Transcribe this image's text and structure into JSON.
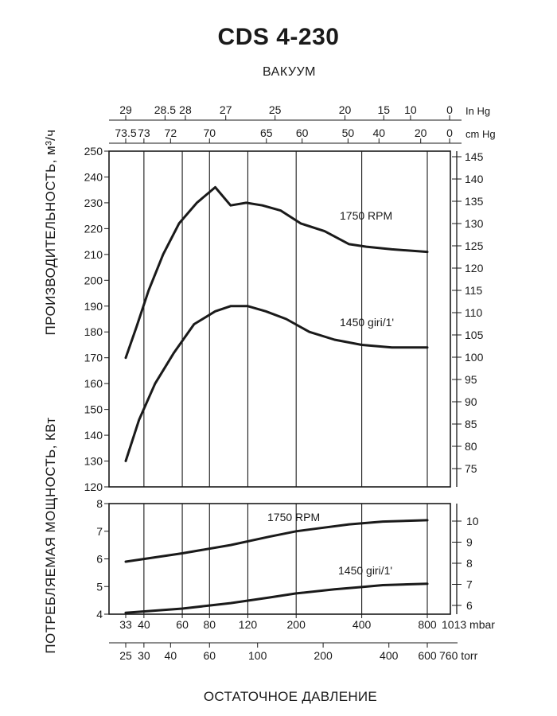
{
  "header": {
    "title": "CDS 4-230",
    "vacuum_label": "ВАКУУМ"
  },
  "footer": {
    "pressure_label": "ОСТАТОЧНОЕ ДАВЛЕНИЕ"
  },
  "axes": {
    "flow_label": "ПРОИЗВОДИТЕЛЬНОСТЬ, м³/ч",
    "power_label": "ПОТРЕБЛЯЕМАЯ МОЩНОСТЬ, КВт",
    "in_hg_unit": "In Hg",
    "cm_hg_unit": "cm Hg",
    "mbar_unit": "1013 mbar",
    "torr_unit": "760 torr"
  },
  "chart_data": [
    {
      "type": "line",
      "title": "CDS 4-230",
      "xlabel": "ОСТАТОЧНОЕ ДАВЛЕНИЕ",
      "ylabel": "ПРОИЗВОДИТЕЛЬНОСТЬ, м³/ч",
      "x_scale": "log",
      "x_unit": "mbar",
      "xlim": [
        33,
        1013
      ],
      "ylim": [
        120,
        250
      ],
      "y_ticks": [
        120,
        130,
        140,
        150,
        160,
        170,
        180,
        190,
        200,
        210,
        220,
        230,
        240,
        250
      ],
      "right_axis_ticks": [
        75,
        80,
        85,
        90,
        95,
        100,
        105,
        110,
        115,
        120,
        125,
        130,
        135,
        140,
        145
      ],
      "grid": true,
      "series": [
        {
          "name": "1750 RPM",
          "color": "#1a1a1a",
          "points": [
            [
              33,
              170
            ],
            [
              37,
              182
            ],
            [
              42,
              196
            ],
            [
              49,
              210
            ],
            [
              58,
              222
            ],
            [
              70,
              230
            ],
            [
              85,
              236
            ],
            [
              100,
              229
            ],
            [
              118,
              230
            ],
            [
              140,
              229
            ],
            [
              170,
              227
            ],
            [
              210,
              222
            ],
            [
              270,
              219
            ],
            [
              350,
              214
            ],
            [
              420,
              213
            ],
            [
              550,
              212
            ],
            [
              800,
              211
            ]
          ]
        },
        {
          "name": "1450 giri/1'",
          "color": "#1a1a1a",
          "points": [
            [
              33,
              130
            ],
            [
              38,
              146
            ],
            [
              45,
              160
            ],
            [
              55,
              172
            ],
            [
              68,
              183
            ],
            [
              85,
              188
            ],
            [
              100,
              190
            ],
            [
              120,
              190
            ],
            [
              145,
              188
            ],
            [
              180,
              185
            ],
            [
              230,
              180
            ],
            [
              300,
              177
            ],
            [
              400,
              175
            ],
            [
              550,
              174
            ],
            [
              800,
              174
            ]
          ]
        }
      ]
    },
    {
      "type": "line",
      "xlabel": "ОСТАТОЧНОЕ ДАВЛЕНИЕ",
      "ylabel": "ПОТРЕБЛЯЕМАЯ МОЩНОСТЬ, КВт",
      "x_scale": "log",
      "x_unit": "mbar",
      "xlim": [
        33,
        1013
      ],
      "ylim": [
        4,
        8
      ],
      "y_ticks": [
        4,
        5,
        6,
        7,
        8
      ],
      "right_axis_ticks": [
        6,
        7,
        8,
        9,
        10
      ],
      "grid": true,
      "series": [
        {
          "name": "1750 RPM",
          "color": "#1a1a1a",
          "points": [
            [
              33,
              5.9
            ],
            [
              60,
              6.2
            ],
            [
              100,
              6.5
            ],
            [
              150,
              6.8
            ],
            [
              200,
              7.0
            ],
            [
              250,
              7.1
            ],
            [
              350,
              7.25
            ],
            [
              500,
              7.35
            ],
            [
              800,
              7.4
            ]
          ]
        },
        {
          "name": "1450 giri/1'",
          "color": "#1a1a1a",
          "points": [
            [
              33,
              4.05
            ],
            [
              60,
              4.2
            ],
            [
              100,
              4.4
            ],
            [
              150,
              4.6
            ],
            [
              200,
              4.75
            ],
            [
              300,
              4.9
            ],
            [
              400,
              4.98
            ],
            [
              500,
              5.05
            ],
            [
              800,
              5.1
            ]
          ]
        }
      ]
    }
  ],
  "scales": {
    "in_hg": [
      {
        "label": "29",
        "mbar": 33
      },
      {
        "label": "28.5",
        "mbar": 50
      },
      {
        "label": "28",
        "mbar": 62
      },
      {
        "label": "27",
        "mbar": 95
      },
      {
        "label": "25",
        "mbar": 160
      },
      {
        "label": "20",
        "mbar": 335
      },
      {
        "label": "15",
        "mbar": 505
      },
      {
        "label": "10",
        "mbar": 670
      },
      {
        "label": "0",
        "mbar": 1013
      }
    ],
    "cm_hg": [
      {
        "label": "73.5",
        "mbar": 33
      },
      {
        "label": "73",
        "mbar": 40
      },
      {
        "label": "72",
        "mbar": 53
      },
      {
        "label": "70",
        "mbar": 80
      },
      {
        "label": "65",
        "mbar": 146
      },
      {
        "label": "60",
        "mbar": 213
      },
      {
        "label": "50",
        "mbar": 346
      },
      {
        "label": "40",
        "mbar": 480
      },
      {
        "label": "20",
        "mbar": 746
      },
      {
        "label": "0",
        "mbar": 1013
      }
    ],
    "mbar": [
      {
        "label": "33",
        "mbar": 33
      },
      {
        "label": "40",
        "mbar": 40
      },
      {
        "label": "60",
        "mbar": 60
      },
      {
        "label": "80",
        "mbar": 80
      },
      {
        "label": "120",
        "mbar": 120
      },
      {
        "label": "200",
        "mbar": 200
      },
      {
        "label": "400",
        "mbar": 400
      },
      {
        "label": "800",
        "mbar": 800
      }
    ],
    "torr": [
      {
        "label": "25",
        "mbar": 33
      },
      {
        "label": "30",
        "mbar": 40
      },
      {
        "label": "40",
        "mbar": 53
      },
      {
        "label": "60",
        "mbar": 80
      },
      {
        "label": "100",
        "mbar": 133
      },
      {
        "label": "200",
        "mbar": 266
      },
      {
        "label": "400",
        "mbar": 533
      },
      {
        "label": "600",
        "mbar": 800
      }
    ]
  }
}
